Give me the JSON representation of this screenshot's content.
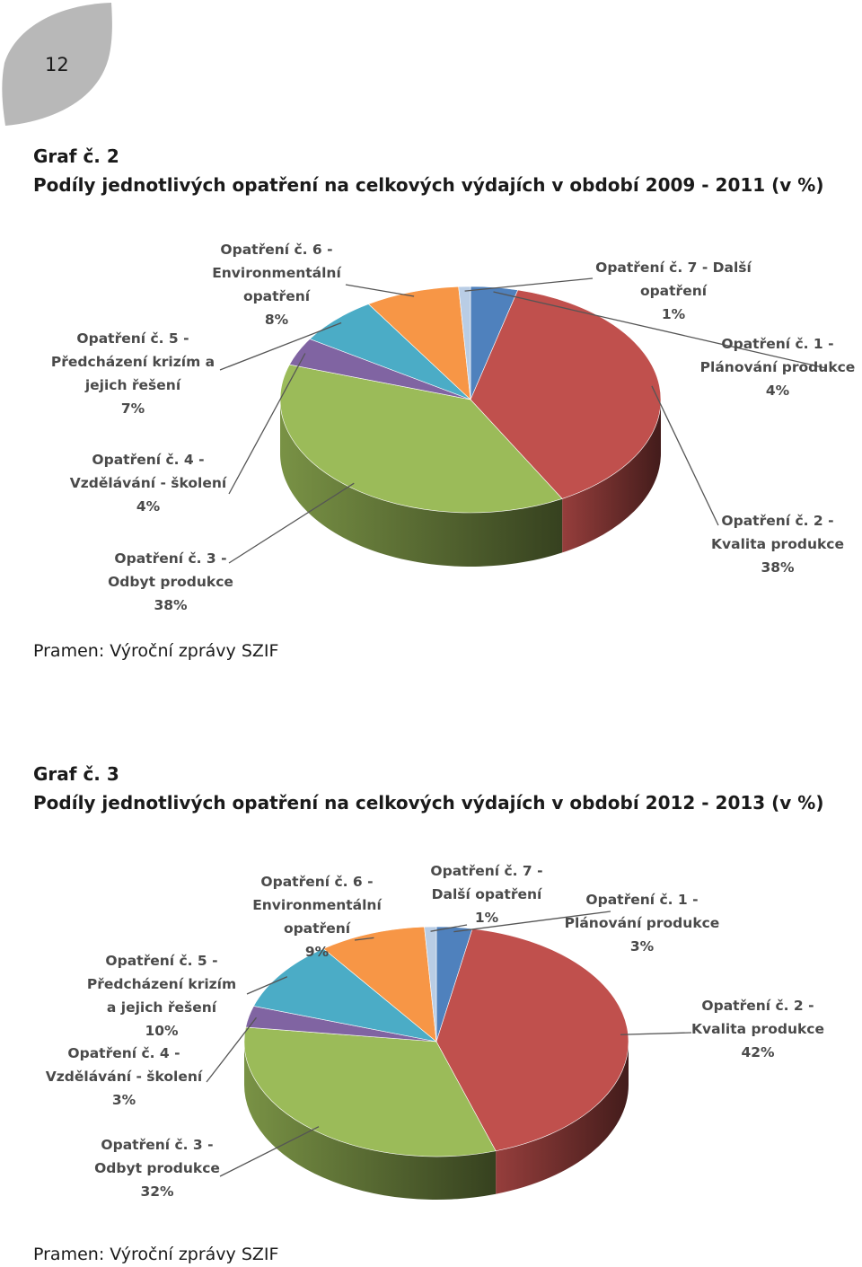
{
  "page": {
    "number": "12"
  },
  "graphs": [
    {
      "caption": "Graf č. 2",
      "title": "Podíly jednotlivých opatření na celkových výdajích v období 2009 - 2011 (v %)",
      "source": "Pramen: Výroční zprávy SZIF"
    },
    {
      "caption": "Graf č. 3",
      "title": "Podíly jednotlivých opatření na celkových výdajích v období 2012 - 2013 (v %)",
      "source": "Pramen: Výroční zprávy SZIF"
    }
  ],
  "chart_data": [
    {
      "type": "pie",
      "style": "3d",
      "start": "top, clockwise",
      "slices": [
        {
          "label_lines": [
            "Opatření č. 1 -",
            "Plánování produkce",
            "4%"
          ],
          "value": 4,
          "color": "#4F81BD"
        },
        {
          "label_lines": [
            "Opatření č. 2 -",
            "Kvalita produkce",
            "38%"
          ],
          "value": 38,
          "color": "#C0504D"
        },
        {
          "label_lines": [
            "Opatření č. 3 -",
            "Odbyt produkce",
            "38%"
          ],
          "value": 38,
          "color": "#9BBB59"
        },
        {
          "label_lines": [
            "Opatření č. 4 -",
            "Vzdělávání - školení",
            "4%"
          ],
          "value": 4,
          "color": "#8064A2"
        },
        {
          "label_lines": [
            "Opatření č. 5 -",
            "Předcházení krizím a",
            "jejich řešení",
            "7%"
          ],
          "value": 7,
          "color": "#4BACC6"
        },
        {
          "label_lines": [
            "Opatření č. 6 -",
            "Environmentální",
            "opatření",
            "8%"
          ],
          "value": 8,
          "color": "#F79646"
        },
        {
          "label_lines": [
            "Opatření č. 7 - Další",
            "opatření",
            "1%"
          ],
          "value": 1,
          "color": "#B9CDE5"
        }
      ]
    },
    {
      "type": "pie",
      "style": "3d",
      "start": "top, clockwise",
      "slices": [
        {
          "label_lines": [
            "Opatření č. 1 -",
            "Plánování produkce",
            "3%"
          ],
          "value": 3,
          "color": "#4F81BD"
        },
        {
          "label_lines": [
            "Opatření č. 2 -",
            "Kvalita produkce",
            "42%"
          ],
          "value": 42,
          "color": "#C0504D"
        },
        {
          "label_lines": [
            "Opatření č. 3 -",
            "Odbyt produkce",
            "32%"
          ],
          "value": 32,
          "color": "#9BBB59"
        },
        {
          "label_lines": [
            "Opatření č. 4 -",
            "Vzdělávání - školení",
            "3%"
          ],
          "value": 3,
          "color": "#8064A2"
        },
        {
          "label_lines": [
            "Opatření č. 5 -",
            "Předcházení krizím",
            "a jejich řešení",
            "10%"
          ],
          "value": 10,
          "color": "#4BACC6"
        },
        {
          "label_lines": [
            "Opatření č. 6 -",
            "Environmentální",
            "opatření",
            "9%"
          ],
          "value": 9,
          "color": "#F79646"
        },
        {
          "label_lines": [
            "Opatření č. 7 -",
            "Další opatření",
            "1%"
          ],
          "value": 1,
          "color": "#B9CDE5"
        }
      ]
    }
  ]
}
